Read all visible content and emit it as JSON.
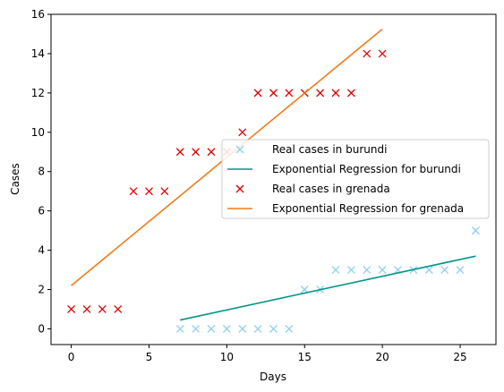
{
  "chart_data": {
    "type": "scatter",
    "xlabel": "Days",
    "ylabel": "Cases",
    "xlim": [
      -1.3,
      27.3
    ],
    "ylim": [
      -0.8,
      16
    ],
    "xticks": [
      0,
      5,
      10,
      15,
      20,
      25
    ],
    "yticks": [
      0,
      2,
      4,
      6,
      8,
      10,
      12,
      14,
      16
    ],
    "grid": false,
    "legend_position": "center-right",
    "series": [
      {
        "name": "Real cases in burundi",
        "kind": "markers",
        "marker": "x",
        "color": "#8fcdf0",
        "x": [
          7,
          8,
          9,
          10,
          11,
          12,
          13,
          14,
          15,
          16,
          17,
          18,
          19,
          20,
          21,
          22,
          23,
          24,
          25,
          26
        ],
        "y": [
          0,
          0,
          0,
          0,
          0,
          0,
          0,
          0,
          2,
          2,
          3,
          3,
          3,
          3,
          3,
          3,
          3,
          3,
          3,
          5
        ]
      },
      {
        "name": "Exponential Regression for burundi",
        "kind": "line",
        "color": "#009688",
        "x": [
          7,
          26
        ],
        "y": [
          0.45,
          3.7
        ]
      },
      {
        "name": "Real cases in grenada",
        "kind": "markers",
        "marker": "x",
        "color": "#e00000",
        "x": [
          0,
          1,
          2,
          3,
          4,
          5,
          6,
          7,
          8,
          9,
          10,
          11,
          12,
          13,
          14,
          15,
          16,
          17,
          18,
          19,
          20
        ],
        "y": [
          1,
          1,
          1,
          1,
          7,
          7,
          7,
          9,
          9,
          9,
          9,
          10,
          12,
          12,
          12,
          12,
          12,
          12,
          12,
          14,
          14
        ]
      },
      {
        "name": "Exponential Regression for grenada",
        "kind": "line",
        "color": "#f07c1a",
        "x": [
          0,
          20
        ],
        "y": [
          2.2,
          15.25
        ]
      }
    ]
  }
}
